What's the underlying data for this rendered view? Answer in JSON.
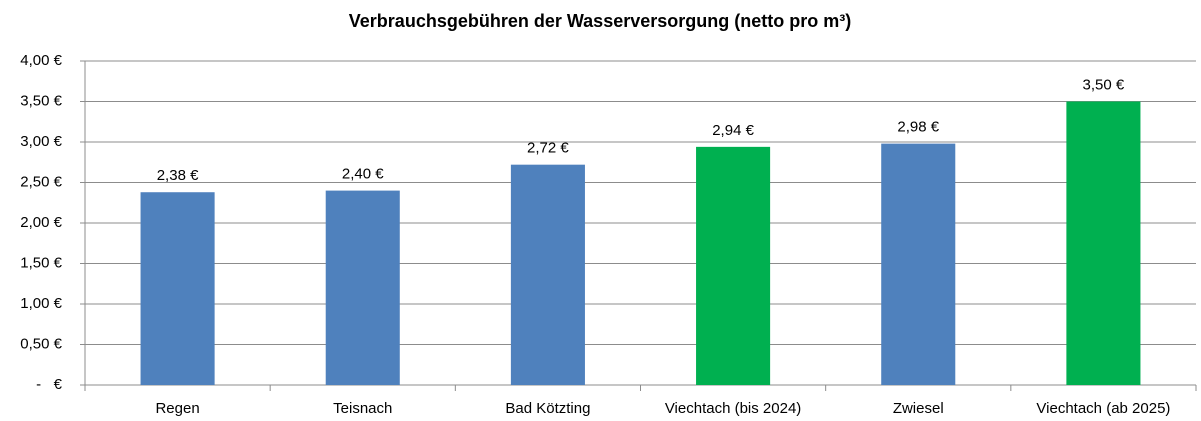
{
  "chart_data": {
    "type": "bar",
    "title": "Verbrauchsgebühren der Wasserversorgung (netto pro m³)",
    "categories": [
      "Regen",
      "Teisnach",
      "Bad Kötzting",
      "Viechtach (bis 2024)",
      "Zwiesel",
      "Viechtach (ab 2025)"
    ],
    "values": [
      2.38,
      2.4,
      2.72,
      2.94,
      2.98,
      3.5
    ],
    "value_labels": [
      "2,38 €",
      "2,40 €",
      "2,72 €",
      "2,94 €",
      "2,98 €",
      "3,50 €"
    ],
    "colors": [
      "#4f81bd",
      "#4f81bd",
      "#4f81bd",
      "#00b050",
      "#4f81bd",
      "#00b050"
    ],
    "ylim": [
      0,
      4
    ],
    "yticks": [
      {
        "value": 0,
        "label": "-   €"
      },
      {
        "value": 0.5,
        "label": "0,50 €"
      },
      {
        "value": 1,
        "label": "1,00 €"
      },
      {
        "value": 1.5,
        "label": "1,50 €"
      },
      {
        "value": 2,
        "label": "2,00 €"
      },
      {
        "value": 2.5,
        "label": "2,50 €"
      },
      {
        "value": 3,
        "label": "3,00 €"
      },
      {
        "value": 3.5,
        "label": "3,50 €"
      },
      {
        "value": 4,
        "label": "4,00 €"
      }
    ],
    "grid": true
  }
}
